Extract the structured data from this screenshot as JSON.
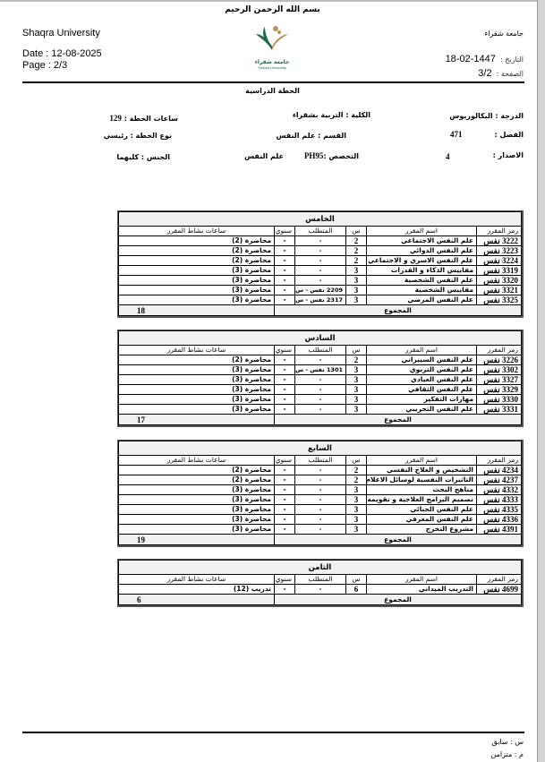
{
  "header": {
    "basmala": "بسم الله الرحمن الرحيم",
    "university_en": "Shaqra University",
    "date_en": "Date : 12-08-2025",
    "page_en": "Page : 2/3",
    "university_ar": "جامعة شقراء",
    "date_ar_label": "التاريخ :",
    "date_ar_value": "1447-02-18",
    "page_ar_label": "الصفحة :",
    "page_ar_value": "3/2",
    "logo_text_ar": "جامعة شقراء",
    "logo_text_en": "Shaqra University",
    "doc_title": "الخطة الدراسية"
  },
  "info": {
    "degree": "الدرجة : البكالوريوس",
    "college": "الكلية : التربية بشقراء",
    "plan_hours_label": "ساعات الخطة :",
    "plan_hours": "129",
    "semester_label": "الفصل :",
    "semester": "471",
    "department": "القسم : علم النفس",
    "plan_type": "نوع الخطة : رئيسي",
    "version_label": "الاصدار :",
    "version": "4",
    "major_label": "التخصص :",
    "major_code": "PH95",
    "major_name": "علم النفس",
    "gender": "الجنس : كليهما"
  },
  "columns": {
    "code": "رمز المقرر",
    "name": "اسم المقرر",
    "hours": "س",
    "prereq": "المتطلب",
    "yearly": "سنوي",
    "activity": "ساعات نشاط المقرر",
    "total": "المجموع"
  },
  "sections": [
    {
      "title": "الخامس",
      "total": "18",
      "rows": [
        {
          "code": "3222 نفس",
          "name": "علم النفس الاجتماعي",
          "hours": "2",
          "prereq": "-",
          "yearly": "-",
          "activity": "محاضرة (2)"
        },
        {
          "code": "3223 نفس",
          "name": "علم النفس الدوائي",
          "hours": "2",
          "prereq": "-",
          "yearly": "-",
          "activity": "محاضرة (2)"
        },
        {
          "code": "3224 نفس",
          "name": "علم النفس الاسري و الاجتماعي",
          "hours": "2",
          "prereq": "-",
          "yearly": "-",
          "activity": "محاضرة (2)"
        },
        {
          "code": "3319 نفس",
          "name": "مقاييس الذكاء و القدرات",
          "hours": "3",
          "prereq": "-",
          "yearly": "-",
          "activity": "محاضرة (3)"
        },
        {
          "code": "3320 نفس",
          "name": "علم النفس الشخصية",
          "hours": "3",
          "prereq": "-",
          "yearly": "-",
          "activity": "محاضرة (3)"
        },
        {
          "code": "3321 نفس",
          "name": "مقاييس الشخصية",
          "hours": "3",
          "prereq": "2209 نفس - س",
          "yearly": "-",
          "activity": "محاضرة (3)"
        },
        {
          "code": "3325 نفس",
          "name": "علم النفس المرضي",
          "hours": "3",
          "prereq": "2317 نفس - س",
          "yearly": "-",
          "activity": "محاضرة (3)"
        }
      ]
    },
    {
      "title": "السادس",
      "total": "17",
      "rows": [
        {
          "code": "3226 نفس",
          "name": "علم النفس السيبراني",
          "hours": "2",
          "prereq": "-",
          "yearly": "-",
          "activity": "محاضرة (2)"
        },
        {
          "code": "3302 نفس",
          "name": "علم النفس التربوي",
          "hours": "3",
          "prereq": "1301 نفس - س",
          "yearly": "-",
          "activity": "محاضرة (3)"
        },
        {
          "code": "3327 نفس",
          "name": "علم النفس العيادي",
          "hours": "3",
          "prereq": "-",
          "yearly": "-",
          "activity": "محاضرة (3)"
        },
        {
          "code": "3329 نفس",
          "name": "علم النفس الثقافي",
          "hours": "3",
          "prereq": "-",
          "yearly": "-",
          "activity": "محاضرة (3)"
        },
        {
          "code": "3330 نفس",
          "name": "مهارات التفكير",
          "hours": "3",
          "prereq": "-",
          "yearly": "-",
          "activity": "محاضرة (3)"
        },
        {
          "code": "3331 نفس",
          "name": "علم النفس التجريبي",
          "hours": "3",
          "prereq": "-",
          "yearly": "-",
          "activity": "محاضرة (3)"
        }
      ]
    },
    {
      "title": "السابع",
      "total": "19",
      "rows": [
        {
          "code": "4234 نفس",
          "name": "التشخيص و العلاج النفسي",
          "hours": "2",
          "prereq": "-",
          "yearly": "-",
          "activity": "محاضرة (2)"
        },
        {
          "code": "4237 نفس",
          "name": "التاثيرات النفسية لوسائل الاعلام",
          "hours": "2",
          "prereq": "-",
          "yearly": "-",
          "activity": "محاضرة (2)"
        },
        {
          "code": "4332 نفس",
          "name": "مناهج البحث",
          "hours": "3",
          "prereq": "-",
          "yearly": "-",
          "activity": "محاضرة (3)"
        },
        {
          "code": "4333 نفس",
          "name": "تصميم البرامج العلاجية و تقويمه",
          "hours": "3",
          "prereq": "-",
          "yearly": "-",
          "activity": "محاضرة (3)"
        },
        {
          "code": "4335 نفس",
          "name": "علم النفس الجنائي",
          "hours": "3",
          "prereq": "-",
          "yearly": "-",
          "activity": "محاضرة (3)"
        },
        {
          "code": "4336 نفس",
          "name": "علم النفس المعرفي",
          "hours": "3",
          "prereq": "-",
          "yearly": "-",
          "activity": "محاضرة (3)"
        },
        {
          "code": "4391 نفس",
          "name": "مشروع التخرج",
          "hours": "3",
          "prereq": "-",
          "yearly": "-",
          "activity": "محاضرة (3)"
        }
      ]
    },
    {
      "title": "الثامن",
      "total": "6",
      "rows": [
        {
          "code": "4699 نفس",
          "name": "التدريب الميداني",
          "hours": "6",
          "prereq": "-",
          "yearly": "-",
          "activity": "تدريب (12)"
        }
      ]
    }
  ],
  "footer": {
    "legend_prereq": "س : سابق",
    "legend_concurrent": "م : متزامن"
  },
  "colors": {
    "logo_green": "#1f6b45",
    "logo_gold": "#b8935a",
    "frame": "#bdbdbd",
    "cell_shade": "#f1f1f1"
  }
}
